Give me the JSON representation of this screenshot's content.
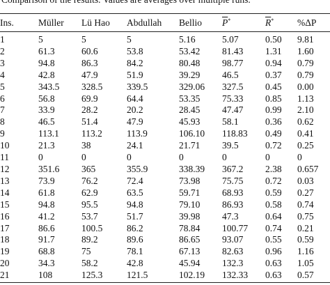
{
  "caption": "Comparison of the results. Values are averages over multiple runs.",
  "table": {
    "headers": [
      {
        "text": "Ins."
      },
      {
        "text": "Müller"
      },
      {
        "text": "Lü Hao"
      },
      {
        "text": "Abdullah"
      },
      {
        "text": "Bellio"
      },
      {
        "text": "P",
        "sup": "*"
      },
      {
        "text": "R",
        "sup": "*"
      },
      {
        "text": "%ΔP"
      }
    ],
    "rows": [
      [
        "1",
        "5",
        "5",
        "5",
        "5.16",
        "5.07",
        "0.50",
        "9.81"
      ],
      [
        "2",
        "61.3",
        "60.6",
        "53.8",
        "53.42",
        "81.43",
        "1.31",
        "1.60"
      ],
      [
        "3",
        "94.8",
        "86.3",
        "84.2",
        "80.48",
        "98.77",
        "0.94",
        "0.79"
      ],
      [
        "4",
        "42.8",
        "47.9",
        "51.9",
        "39.29",
        "46.5",
        "0.37",
        "0.79"
      ],
      [
        "5",
        "343.5",
        "328.5",
        "339.5",
        "329.06",
        "327.5",
        "0.45",
        "0.00"
      ],
      [
        "6",
        "56.8",
        "69.9",
        "64.4",
        "53.35",
        "75.33",
        "0.85",
        "1.13"
      ],
      [
        "7",
        "33.9",
        "28.2",
        "20.2",
        "28.45",
        "47.47",
        "0.99",
        "2.10"
      ],
      [
        "8",
        "46.5",
        "51.4",
        "47.9",
        "45.93",
        "58.1",
        "0.36",
        "0.62"
      ],
      [
        "9",
        "113.1",
        "113.2",
        "113.9",
        "106.10",
        "118.83",
        "0.49",
        "0.41"
      ],
      [
        "10",
        "21.3",
        "38",
        "24.1",
        "21.71",
        "39.5",
        "0.72",
        "0.25"
      ],
      [
        "11",
        "0",
        "0",
        "0",
        "0",
        "0",
        "0",
        "0"
      ],
      [
        "12",
        "351.6",
        "365",
        "355.9",
        "338.39",
        "367.2",
        "2.38",
        "0.657"
      ],
      [
        "13",
        "73.9",
        "76.2",
        "72.4",
        "73.98",
        "75.75",
        "0.72",
        "0.03"
      ],
      [
        "14",
        "61.8",
        "62.9",
        "63.5",
        "59.71",
        "68.93",
        "0.59",
        "0.27"
      ],
      [
        "15",
        "94.8",
        "95.5",
        "94.8",
        "79.10",
        "86.93",
        "0.58",
        "0.74"
      ],
      [
        "16",
        "41.2",
        "53.7",
        "51.7",
        "39.98",
        "47.3",
        "0.64",
        "0.75"
      ],
      [
        "17",
        "86.6",
        "100.5",
        "86.2",
        "78.84",
        "100.77",
        "0.74",
        "0.21"
      ],
      [
        "18",
        "91.7",
        "89.2",
        "89.6",
        "86.65",
        "93.07",
        "0.55",
        "0.59"
      ],
      [
        "19",
        "68.8",
        "75",
        "78.1",
        "67.13",
        "82.63",
        "0.96",
        "1.16"
      ],
      [
        "20",
        "34.3",
        "58.2",
        "42.8",
        "45.94",
        "132.3",
        "0.63",
        "1.05"
      ],
      [
        "21",
        "108",
        "125.3",
        "121.5",
        "102.19",
        "132.33",
        "0.63",
        "0.57"
      ]
    ]
  }
}
